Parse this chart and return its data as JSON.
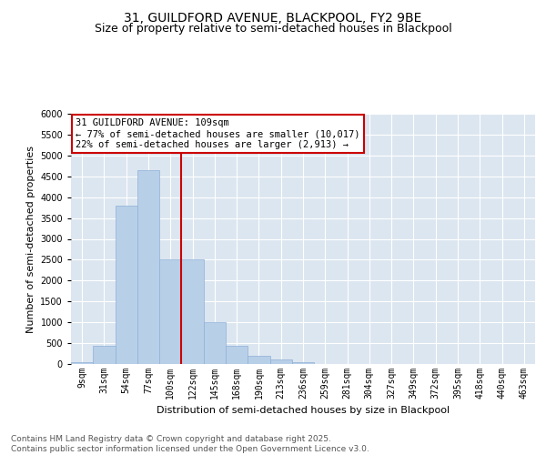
{
  "title_line1": "31, GUILDFORD AVENUE, BLACKPOOL, FY2 9BE",
  "title_line2": "Size of property relative to semi-detached houses in Blackpool",
  "xlabel": "Distribution of semi-detached houses by size in Blackpool",
  "ylabel": "Number of semi-detached properties",
  "bar_color": "#b8cfe8",
  "bar_edge_color": "#8fb0d8",
  "background_color": "#dce6f0",
  "grid_color": "#ffffff",
  "categories": [
    "9sqm",
    "31sqm",
    "54sqm",
    "77sqm",
    "100sqm",
    "122sqm",
    "145sqm",
    "168sqm",
    "190sqm",
    "213sqm",
    "236sqm",
    "259sqm",
    "281sqm",
    "304sqm",
    "327sqm",
    "349sqm",
    "372sqm",
    "395sqm",
    "418sqm",
    "440sqm",
    "463sqm"
  ],
  "values": [
    50,
    430,
    3800,
    4650,
    2500,
    2500,
    1000,
    430,
    200,
    110,
    50,
    0,
    0,
    0,
    0,
    0,
    0,
    0,
    0,
    0,
    0
  ],
  "ylim": [
    0,
    6000
  ],
  "yticks": [
    0,
    500,
    1000,
    1500,
    2000,
    2500,
    3000,
    3500,
    4000,
    4500,
    5000,
    5500,
    6000
  ],
  "vline_x_index": 4.5,
  "vline_color": "#cc0000",
  "annotation_text": "31 GUILDFORD AVENUE: 109sqm\n← 77% of semi-detached houses are smaller (10,017)\n22% of semi-detached houses are larger (2,913) →",
  "annotation_box_color": "#ffffff",
  "annotation_edge_color": "#cc0000",
  "footnote": "Contains HM Land Registry data © Crown copyright and database right 2025.\nContains public sector information licensed under the Open Government Licence v3.0.",
  "title_fontsize": 10,
  "subtitle_fontsize": 9,
  "axis_label_fontsize": 8,
  "tick_fontsize": 7,
  "annotation_fontsize": 7.5,
  "footnote_fontsize": 6.5
}
